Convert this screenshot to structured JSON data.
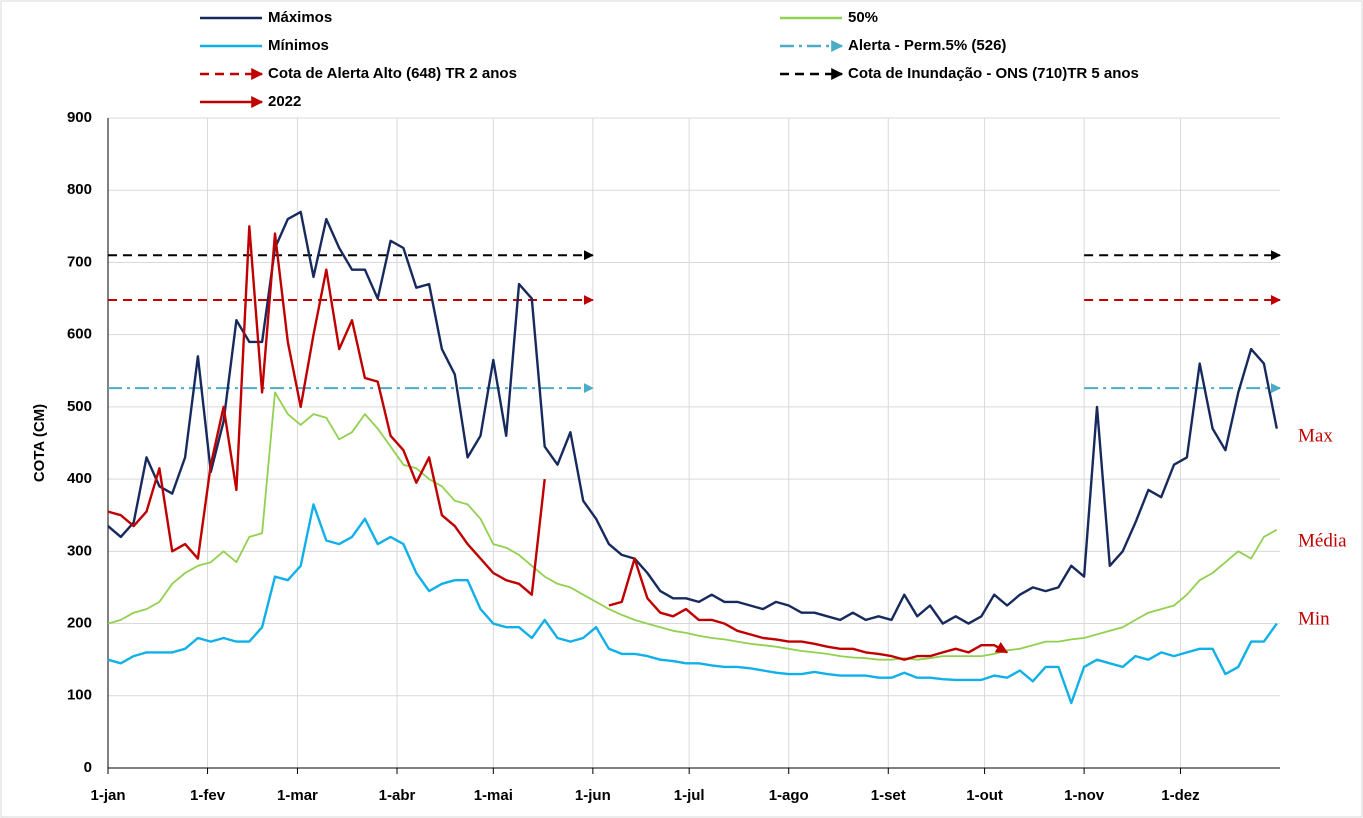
{
  "chart_data": {
    "type": "line",
    "y_label": "COTA (CM)",
    "xlim": [
      0,
      365
    ],
    "xticks": [
      {
        "value": 0,
        "label": "1-jan"
      },
      {
        "value": 31,
        "label": "1-fev"
      },
      {
        "value": 59,
        "label": "1-mar"
      },
      {
        "value": 90,
        "label": "1-abr"
      },
      {
        "value": 120,
        "label": "1-mai"
      },
      {
        "value": 151,
        "label": "1-jun"
      },
      {
        "value": 181,
        "label": "1-jul"
      },
      {
        "value": 212,
        "label": "1-ago"
      },
      {
        "value": 243,
        "label": "1-set"
      },
      {
        "value": 273,
        "label": "1-out"
      },
      {
        "value": 304,
        "label": "1-nov"
      },
      {
        "value": 334,
        "label": "1-dez"
      }
    ],
    "ylim": [
      0,
      900
    ],
    "yticks": [
      0,
      100,
      200,
      300,
      400,
      500,
      600,
      700,
      800,
      900
    ],
    "grid": true,
    "x": [
      0,
      4,
      8,
      12,
      16,
      20,
      24,
      28,
      32,
      36,
      40,
      44,
      48,
      52,
      56,
      60,
      64,
      68,
      72,
      76,
      80,
      84,
      88,
      92,
      96,
      100,
      104,
      108,
      112,
      116,
      120,
      124,
      128,
      132,
      136,
      140,
      144,
      148,
      152,
      156,
      160,
      164,
      168,
      172,
      176,
      180,
      184,
      188,
      192,
      196,
      200,
      204,
      208,
      212,
      216,
      220,
      224,
      228,
      232,
      236,
      240,
      244,
      248,
      252,
      256,
      260,
      264,
      268,
      272,
      276,
      280,
      284,
      288,
      292,
      296,
      300,
      304,
      308,
      312,
      316,
      320,
      324,
      328,
      332,
      336,
      340,
      344,
      348,
      352,
      356,
      360,
      364
    ],
    "series": [
      {
        "name": "Máximos",
        "color": "#172a5e",
        "values": [
          335,
          320,
          340,
          430,
          390,
          380,
          430,
          570,
          410,
          480,
          620,
          590,
          590,
          720,
          760,
          770,
          680,
          760,
          720,
          690,
          690,
          650,
          730,
          720,
          665,
          670,
          580,
          545,
          430,
          460,
          565,
          460,
          670,
          650,
          445,
          420,
          465,
          370,
          345,
          310,
          295,
          290,
          270,
          245,
          235,
          235,
          230,
          240,
          230,
          230,
          225,
          220,
          230,
          225,
          215,
          215,
          210,
          205,
          215,
          205,
          210,
          205,
          240,
          210,
          225,
          200,
          210,
          200,
          210,
          240,
          225,
          240,
          250,
          245,
          250,
          280,
          265,
          500,
          280,
          300,
          340,
          385,
          375,
          420,
          430,
          560,
          470,
          440,
          520,
          580,
          560,
          470
        ]
      },
      {
        "name": "Mínimos",
        "color": "#11b0e8",
        "values": [
          150,
          145,
          155,
          160,
          160,
          160,
          165,
          180,
          175,
          180,
          175,
          175,
          195,
          265,
          260,
          280,
          365,
          315,
          310,
          320,
          345,
          310,
          320,
          310,
          270,
          245,
          255,
          260,
          260,
          220,
          200,
          195,
          195,
          180,
          205,
          180,
          175,
          180,
          195,
          165,
          158,
          158,
          155,
          150,
          148,
          145,
          145,
          142,
          140,
          140,
          138,
          135,
          132,
          130,
          130,
          133,
          130,
          128,
          128,
          128,
          125,
          125,
          132,
          125,
          125,
          123,
          122,
          122,
          122,
          128,
          125,
          135,
          120,
          140,
          140,
          90,
          140,
          150,
          145,
          140,
          155,
          150,
          160,
          155,
          160,
          165,
          165,
          130,
          140,
          175,
          175,
          200
        ]
      },
      {
        "name": "50%",
        "color": "#92d050",
        "values": [
          200,
          205,
          215,
          220,
          230,
          255,
          270,
          280,
          285,
          300,
          285,
          320,
          325,
          520,
          490,
          475,
          490,
          485,
          455,
          465,
          490,
          470,
          445,
          420,
          415,
          400,
          390,
          370,
          365,
          345,
          310,
          305,
          295,
          280,
          265,
          255,
          250,
          240,
          230,
          220,
          212,
          205,
          200,
          195,
          190,
          187,
          183,
          180,
          178,
          175,
          172,
          170,
          168,
          165,
          162,
          160,
          158,
          155,
          153,
          152,
          150,
          150,
          152,
          150,
          152,
          155,
          155,
          155,
          155,
          158,
          163,
          165,
          170,
          175,
          175,
          178,
          180,
          185,
          190,
          195,
          205,
          215,
          220,
          225,
          240,
          260,
          270,
          285,
          300,
          290,
          320,
          330
        ]
      },
      {
        "name": "2022",
        "color": "#c00000",
        "values": [
          355,
          350,
          335,
          355,
          415,
          300,
          310,
          290,
          420,
          500,
          385,
          750,
          520,
          740,
          590,
          500,
          600,
          690,
          580,
          620,
          540,
          535,
          460,
          440,
          395,
          430,
          350,
          335,
          310,
          290,
          270,
          260,
          255,
          240,
          400,
          null,
          null,
          220,
          null,
          225,
          230,
          290,
          235,
          215,
          210,
          220,
          205,
          205,
          200,
          190,
          185,
          180,
          178,
          175,
          175,
          172,
          168,
          165,
          165,
          160,
          158,
          155,
          150,
          155,
          155,
          160,
          165,
          160,
          170,
          170,
          160,
          null,
          null,
          null,
          null,
          null,
          null,
          null,
          null,
          null,
          null,
          null,
          null,
          null,
          null,
          null,
          null,
          null,
          null,
          null,
          null,
          null
        ]
      }
    ],
    "reference_lines": [
      {
        "name": "Cota de Inundação  - ONS (710)TR 5 anos",
        "value": 710,
        "color": "#000000",
        "segments": [
          [
            0,
            151
          ],
          [
            304,
            365
          ]
        ]
      },
      {
        "name": "Cota de Alerta Alto (648) TR 2 anos",
        "value": 648,
        "color": "#c00000",
        "segments": [
          [
            0,
            151
          ],
          [
            304,
            365
          ]
        ]
      },
      {
        "name": "Alerta - Perm.5% (526)",
        "value": 526,
        "color": "#4bacc6",
        "segments": [
          [
            0,
            151
          ],
          [
            304,
            365
          ]
        ]
      }
    ],
    "annotations": [
      "Max",
      "Média",
      "Min"
    ]
  }
}
